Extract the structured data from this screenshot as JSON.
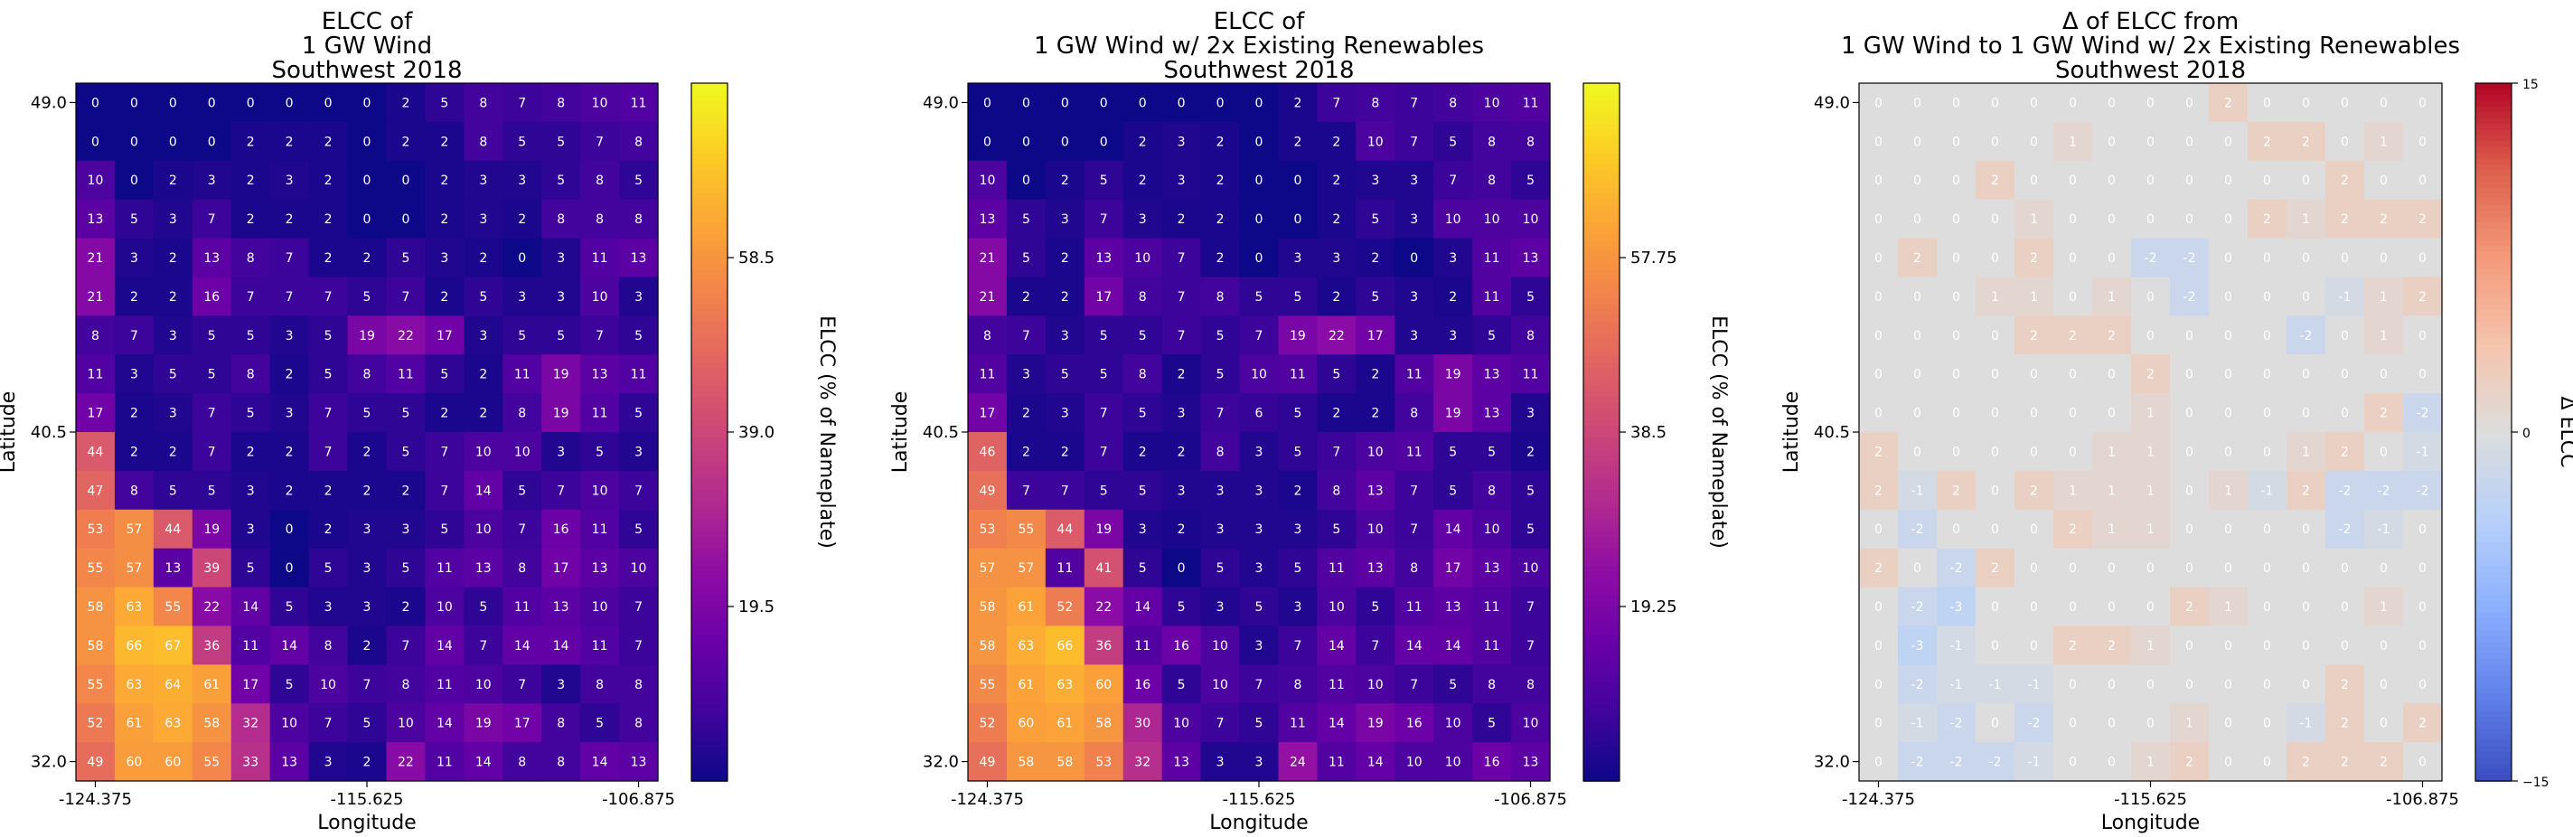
{
  "chart_data": [
    {
      "type": "heatmap",
      "title": "ELCC of\n1 GW Wind\nSouthwest 2018",
      "xlabel": "Longitude",
      "ylabel": "Latitude",
      "x_ticks": [
        "-124.375",
        "-115.625",
        "-106.875"
      ],
      "y_ticks": [
        "49.0",
        "40.5",
        "32.0"
      ],
      "colorbar_label": "ELCC (% of Nameplate)",
      "colorbar_ticks": [
        "19.5",
        "39.0",
        "58.5"
      ],
      "colorbar_tick_values": [
        19.5,
        39.0,
        58.5
      ],
      "colormap": "plasma",
      "vmin": 0,
      "vmax": 78,
      "values": [
        [
          0,
          0,
          0,
          0,
          0,
          0,
          0,
          0,
          2,
          5,
          8,
          7,
          8,
          10,
          11
        ],
        [
          0,
          0,
          0,
          0,
          2,
          2,
          2,
          0,
          2,
          2,
          8,
          5,
          5,
          7,
          8
        ],
        [
          10,
          0,
          2,
          3,
          2,
          3,
          2,
          0,
          0,
          2,
          3,
          3,
          5,
          8,
          5
        ],
        [
          13,
          5,
          3,
          7,
          2,
          2,
          2,
          0,
          0,
          2,
          3,
          2,
          8,
          8,
          8
        ],
        [
          21,
          3,
          2,
          13,
          8,
          7,
          2,
          2,
          5,
          3,
          2,
          0,
          3,
          11,
          13
        ],
        [
          21,
          2,
          2,
          16,
          7,
          7,
          7,
          5,
          7,
          2,
          5,
          3,
          3,
          10,
          3
        ],
        [
          8,
          7,
          3,
          5,
          5,
          3,
          5,
          19,
          22,
          17,
          3,
          5,
          5,
          7,
          5
        ],
        [
          11,
          3,
          5,
          5,
          8,
          2,
          5,
          8,
          11,
          5,
          2,
          11,
          19,
          13,
          11
        ],
        [
          17,
          2,
          3,
          7,
          5,
          3,
          7,
          5,
          5,
          2,
          2,
          8,
          19,
          11,
          5
        ],
        [
          44,
          2,
          2,
          7,
          2,
          2,
          7,
          2,
          5,
          7,
          10,
          10,
          3,
          5,
          3
        ],
        [
          47,
          8,
          5,
          5,
          3,
          2,
          2,
          2,
          2,
          7,
          14,
          5,
          7,
          10,
          7
        ],
        [
          53,
          57,
          44,
          19,
          3,
          0,
          2,
          3,
          3,
          5,
          10,
          7,
          16,
          11,
          5
        ],
        [
          55,
          57,
          13,
          39,
          5,
          0,
          5,
          3,
          5,
          11,
          13,
          8,
          17,
          13,
          10
        ],
        [
          58,
          63,
          55,
          22,
          14,
          5,
          3,
          3,
          2,
          10,
          5,
          11,
          13,
          10,
          7
        ],
        [
          58,
          66,
          67,
          36,
          11,
          14,
          8,
          2,
          7,
          14,
          7,
          14,
          14,
          11,
          7
        ],
        [
          55,
          63,
          64,
          61,
          17,
          5,
          10,
          7,
          8,
          11,
          10,
          7,
          3,
          8,
          8
        ],
        [
          52,
          61,
          63,
          58,
          32,
          10,
          7,
          5,
          10,
          14,
          19,
          17,
          8,
          5,
          8
        ],
        [
          49,
          60,
          60,
          55,
          33,
          13,
          3,
          2,
          22,
          11,
          14,
          8,
          8,
          14,
          13
        ]
      ]
    },
    {
      "type": "heatmap",
      "title": "ELCC of\n1 GW Wind w/ 2x Existing Renewables\nSouthwest 2018",
      "xlabel": "Longitude",
      "ylabel": "Latitude",
      "x_ticks": [
        "-124.375",
        "-115.625",
        "-106.875"
      ],
      "y_ticks": [
        "49.0",
        "40.5",
        "32.0"
      ],
      "colorbar_label": "ELCC (% of Nameplate)",
      "colorbar_ticks": [
        "19.25",
        "38.5",
        "57.75"
      ],
      "colorbar_tick_values": [
        19.25,
        38.5,
        57.75
      ],
      "colormap": "plasma",
      "vmin": 0,
      "vmax": 77,
      "values": [
        [
          0,
          0,
          0,
          0,
          0,
          0,
          0,
          0,
          2,
          7,
          8,
          7,
          8,
          10,
          11
        ],
        [
          0,
          0,
          0,
          0,
          2,
          3,
          2,
          0,
          2,
          2,
          10,
          7,
          5,
          8,
          8
        ],
        [
          10,
          0,
          2,
          5,
          2,
          3,
          2,
          0,
          0,
          2,
          3,
          3,
          7,
          8,
          5
        ],
        [
          13,
          5,
          3,
          7,
          3,
          2,
          2,
          0,
          0,
          2,
          5,
          3,
          10,
          10,
          10
        ],
        [
          21,
          5,
          2,
          13,
          10,
          7,
          2,
          0,
          3,
          3,
          2,
          0,
          3,
          11,
          13
        ],
        [
          21,
          2,
          2,
          17,
          8,
          7,
          8,
          5,
          5,
          2,
          5,
          3,
          2,
          11,
          5
        ],
        [
          8,
          7,
          3,
          5,
          5,
          7,
          5,
          7,
          19,
          22,
          17,
          3,
          3,
          5,
          8
        ],
        [
          11,
          3,
          5,
          5,
          8,
          2,
          5,
          10,
          11,
          5,
          2,
          11,
          19,
          13,
          11
        ],
        [
          17,
          2,
          3,
          7,
          5,
          3,
          7,
          6,
          5,
          2,
          2,
          8,
          19,
          13,
          3
        ],
        [
          46,
          2,
          2,
          7,
          2,
          2,
          8,
          3,
          5,
          7,
          10,
          11,
          5,
          5,
          2
        ],
        [
          49,
          7,
          7,
          5,
          5,
          3,
          3,
          3,
          2,
          8,
          13,
          7,
          5,
          8,
          5
        ],
        [
          53,
          55,
          44,
          19,
          3,
          2,
          3,
          3,
          3,
          5,
          10,
          7,
          14,
          10,
          5
        ],
        [
          57,
          57,
          11,
          41,
          5,
          0,
          5,
          3,
          5,
          11,
          13,
          8,
          17,
          13,
          10
        ],
        [
          58,
          61,
          52,
          22,
          14,
          5,
          3,
          5,
          3,
          10,
          5,
          11,
          13,
          11,
          7
        ],
        [
          58,
          63,
          66,
          36,
          11,
          16,
          10,
          3,
          7,
          14,
          7,
          14,
          14,
          11,
          7
        ],
        [
          55,
          61,
          63,
          60,
          16,
          5,
          10,
          7,
          8,
          11,
          10,
          7,
          5,
          8,
          8
        ],
        [
          52,
          60,
          61,
          58,
          30,
          10,
          7,
          5,
          11,
          14,
          19,
          16,
          10,
          5,
          10
        ],
        [
          49,
          58,
          58,
          53,
          32,
          13,
          3,
          3,
          24,
          11,
          14,
          10,
          10,
          16,
          13
        ]
      ]
    },
    {
      "type": "heatmap",
      "title": "Δ of ELCC from\n1 GW Wind to 1 GW Wind w/ 2x Existing Renewables\nSouthwest 2018",
      "xlabel": "Longitude",
      "ylabel": "Latitude",
      "x_ticks": [
        "-124.375",
        "-115.625",
        "-106.875"
      ],
      "y_ticks": [
        "49.0",
        "40.5",
        "32.0"
      ],
      "colorbar_label": "Δ ELCC",
      "colorbar_ticks": [
        "−15",
        "0",
        "15"
      ],
      "colorbar_tick_values": [
        -15,
        0,
        15
      ],
      "colormap": "coolwarm",
      "vmin": -15,
      "vmax": 15,
      "values": [
        [
          0,
          0,
          0,
          0,
          0,
          0,
          0,
          0,
          0,
          2,
          0,
          0,
          0,
          0,
          0
        ],
        [
          0,
          0,
          0,
          0,
          0,
          1,
          0,
          0,
          0,
          0,
          2,
          2,
          0,
          1,
          0
        ],
        [
          0,
          0,
          0,
          2,
          0,
          0,
          0,
          0,
          0,
          0,
          0,
          0,
          2,
          0,
          0
        ],
        [
          0,
          0,
          0,
          0,
          1,
          0,
          0,
          0,
          0,
          0,
          2,
          1,
          2,
          2,
          2
        ],
        [
          0,
          2,
          0,
          0,
          2,
          0,
          0,
          -2,
          -2,
          0,
          0,
          0,
          0,
          0,
          0
        ],
        [
          0,
          0,
          0,
          1,
          1,
          0,
          1,
          0,
          -2,
          0,
          0,
          0,
          -1,
          1,
          2
        ],
        [
          0,
          0,
          0,
          0,
          2,
          2,
          2,
          0,
          0,
          0,
          0,
          -2,
          0,
          1,
          0
        ],
        [
          0,
          0,
          0,
          0,
          0,
          0,
          0,
          2,
          0,
          0,
          0,
          0,
          0,
          0,
          0
        ],
        [
          0,
          0,
          0,
          0,
          0,
          0,
          0,
          1,
          0,
          0,
          0,
          0,
          0,
          2,
          -2
        ],
        [
          2,
          0,
          0,
          0,
          0,
          0,
          1,
          1,
          0,
          0,
          0,
          1,
          2,
          0,
          -1
        ],
        [
          2,
          -1,
          2,
          0,
          2,
          1,
          1,
          1,
          0,
          1,
          -1,
          2,
          -2,
          -2,
          -2
        ],
        [
          0,
          -2,
          0,
          0,
          0,
          2,
          1,
          1,
          0,
          0,
          0,
          0,
          -2,
          -1,
          0
        ],
        [
          2,
          0,
          -2,
          2,
          0,
          0,
          0,
          0,
          0,
          0,
          0,
          0,
          0,
          0,
          0
        ],
        [
          0,
          -2,
          -3,
          0,
          0,
          0,
          0,
          0,
          2,
          1,
          0,
          0,
          0,
          1,
          0
        ],
        [
          0,
          -3,
          -1,
          0,
          0,
          2,
          2,
          1,
          0,
          0,
          0,
          0,
          0,
          0,
          0
        ],
        [
          0,
          -2,
          -1,
          -1,
          -1,
          0,
          0,
          0,
          0,
          0,
          0,
          0,
          2,
          0,
          0
        ],
        [
          0,
          -1,
          -2,
          0,
          -2,
          0,
          0,
          0,
          1,
          0,
          0,
          -1,
          2,
          0,
          2
        ],
        [
          0,
          -2,
          -2,
          -2,
          -1,
          0,
          0,
          1,
          2,
          0,
          0,
          2,
          2,
          2,
          0
        ]
      ]
    }
  ]
}
